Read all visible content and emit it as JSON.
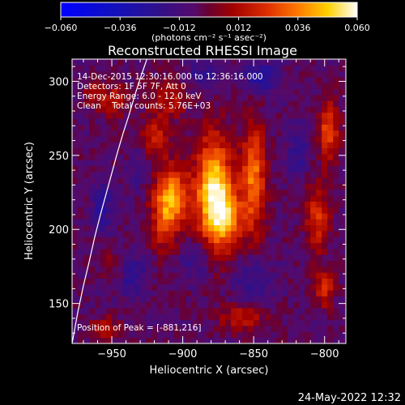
{
  "colorbar": {
    "ticks": [
      "-0.060",
      "-0.036",
      "-0.012",
      "0.012",
      "0.036",
      "0.060"
    ],
    "tick_values": [
      -0.06,
      -0.036,
      -0.012,
      0.012,
      0.036,
      0.06
    ],
    "range": [
      -0.06,
      0.06
    ],
    "unit_label": "(photons cm⁻² s⁻¹ asec⁻²)"
  },
  "chart_data": {
    "type": "heatmap",
    "title": "Reconstructed RHESSI Image",
    "xlabel": "Heliocentric X (arcsec)",
    "ylabel": "Heliocentric Y (arcsec)",
    "xlim": [
      -978,
      -785
    ],
    "ylim": [
      123,
      315
    ],
    "xticks": [
      -950,
      -900,
      -850,
      -800
    ],
    "yticks": [
      150,
      200,
      250,
      300
    ],
    "xtick_labels": [
      "−950",
      "−900",
      "−850",
      "−800"
    ],
    "ytick_labels": [
      "150",
      "200",
      "250",
      "300"
    ],
    "colormap": "rhessi (blue-purple-red-yellow-white)",
    "peak": [
      -881,
      216
    ],
    "sources": [
      {
        "x": -878,
        "y": 225,
        "amplitude": 0.06,
        "sx": 9,
        "sy": 26
      },
      {
        "x": -868,
        "y": 208,
        "amplitude": 0.03,
        "sx": 8,
        "sy": 14
      },
      {
        "x": -850,
        "y": 235,
        "amplitude": 0.04,
        "sx": 6,
        "sy": 26
      },
      {
        "x": -905,
        "y": 222,
        "amplitude": 0.032,
        "sx": 8,
        "sy": 15
      },
      {
        "x": -913,
        "y": 212,
        "amplitude": 0.03,
        "sx": 7,
        "sy": 18
      },
      {
        "x": -920,
        "y": 262,
        "amplitude": 0.025,
        "sx": 7,
        "sy": 9
      },
      {
        "x": -910,
        "y": 288,
        "amplitude": 0.02,
        "sx": 9,
        "sy": 10
      },
      {
        "x": -948,
        "y": 287,
        "amplitude": 0.02,
        "sx": 6,
        "sy": 8
      },
      {
        "x": -962,
        "y": 292,
        "amplitude": 0.018,
        "sx": 5,
        "sy": 7
      },
      {
        "x": -805,
        "y": 208,
        "amplitude": 0.028,
        "sx": 6,
        "sy": 16
      },
      {
        "x": -797,
        "y": 268,
        "amplitude": 0.033,
        "sx": 5,
        "sy": 15
      },
      {
        "x": -800,
        "y": 160,
        "amplitude": 0.025,
        "sx": 5,
        "sy": 9
      },
      {
        "x": -858,
        "y": 140,
        "amplitude": 0.02,
        "sx": 12,
        "sy": 7
      },
      {
        "x": -955,
        "y": 133,
        "amplitude": 0.018,
        "sx": 8,
        "sy": 6
      },
      {
        "x": -950,
        "y": 178,
        "amplitude": 0.015,
        "sx": 5,
        "sy": 6
      },
      {
        "x": -935,
        "y": 168,
        "amplitude": -0.015,
        "sx": 7,
        "sy": 10
      },
      {
        "x": -890,
        "y": 182,
        "amplitude": -0.015,
        "sx": 8,
        "sy": 10
      },
      {
        "x": -850,
        "y": 165,
        "amplitude": -0.015,
        "sx": 10,
        "sy": 10
      },
      {
        "x": -845,
        "y": 303,
        "amplitude": -0.022,
        "sx": 8,
        "sy": 8
      },
      {
        "x": -885,
        "y": 305,
        "amplitude": -0.015,
        "sx": 9,
        "sy": 6
      },
      {
        "x": -818,
        "y": 255,
        "amplitude": -0.015,
        "sx": 5,
        "sy": 14
      },
      {
        "x": -957,
        "y": 215,
        "amplitude": -0.018,
        "sx": 5,
        "sy": 12
      },
      {
        "x": -930,
        "y": 242,
        "amplitude": -0.012,
        "sx": 5,
        "sy": 10
      }
    ],
    "limb_curve": {
      "x": [
        -978,
        -974,
        -970,
        -966,
        -962,
        -958,
        -954,
        -950,
        -946,
        -942,
        -938,
        -934,
        -930,
        -926,
        -922
      ],
      "y": [
        123,
        144,
        162,
        178,
        195,
        210,
        224,
        238,
        252,
        265,
        277,
        290,
        302,
        313,
        324
      ]
    },
    "annotations": [
      "14-Dec-2015 12:30:16.000 to 12:36:16.000",
      "Detectors: 1F 5F 7F, Att 0",
      "Energy Range: 6.0 - 12.0 keV",
      "Clean    Total counts: 5.76E+03",
      "Position of Peak = [-881,216]"
    ]
  },
  "footer": {
    "timestamp": "24-May-2022 12:32"
  }
}
